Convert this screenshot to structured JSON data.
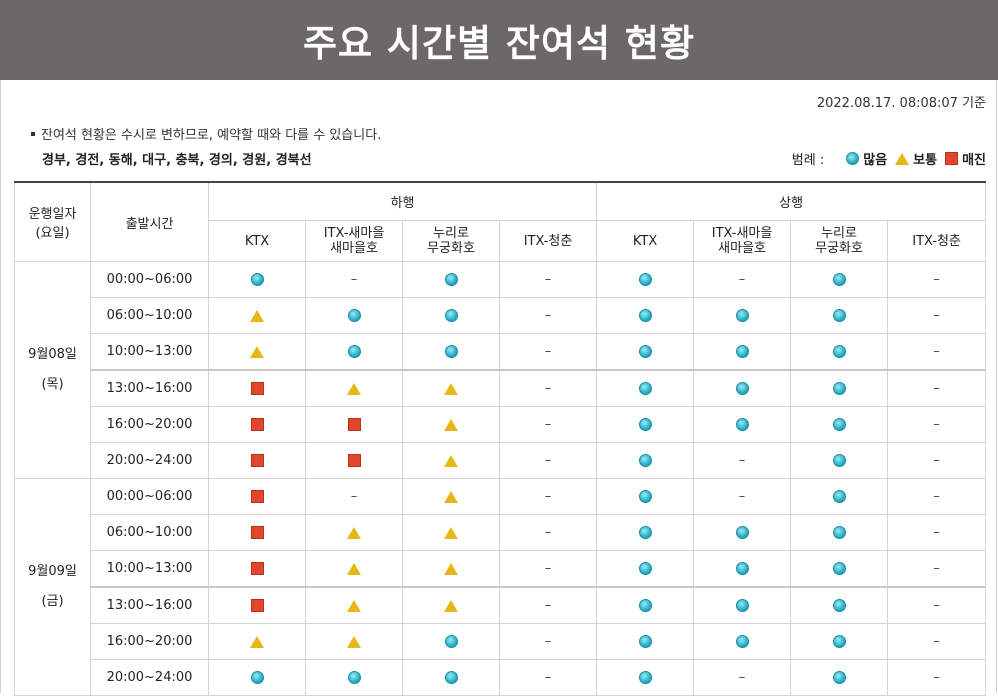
{
  "header": {
    "title": "주요 시간별 잔여석 현황"
  },
  "timestamp": "2022.08.17. 08:08:07 기준",
  "notice": "잔여석 현황은 수시로 변하므로, 예약할 때와 다를 수 있습니다.",
  "routes": "경부, 경전, 동해, 대구, 충북, 경의, 경원, 경북선",
  "legend": {
    "label": "범례 :",
    "items": [
      {
        "status": "many",
        "label": "많음",
        "icon": "circle-icon",
        "color": "#2eb6cc"
      },
      {
        "status": "normal",
        "label": "보통",
        "icon": "triangle-icon",
        "color": "#e7b718"
      },
      {
        "status": "soldout",
        "label": "매진",
        "icon": "square-icon",
        "color": "#e0462a"
      }
    ]
  },
  "table": {
    "col_date": "운행일자\n(요일)",
    "col_time": "출발시간",
    "down_label": "하행",
    "up_label": "상행",
    "trains": [
      "KTX",
      "ITX-새마을\n새마을호",
      "누리로\n무궁화호",
      "ITX-청춘"
    ],
    "days": [
      {
        "date": "9월08일",
        "weekday": "(목)",
        "rows": [
          {
            "time": "00:00~06:00",
            "down": [
              "many",
              "none",
              "many",
              "none"
            ],
            "up": [
              "many",
              "none",
              "many",
              "none"
            ]
          },
          {
            "time": "06:00~10:00",
            "down": [
              "normal",
              "many",
              "many",
              "none"
            ],
            "up": [
              "many",
              "many",
              "many",
              "none"
            ]
          },
          {
            "time": "10:00~13:00",
            "down": [
              "normal",
              "many",
              "many",
              "none"
            ],
            "up": [
              "many",
              "many",
              "many",
              "none"
            ]
          },
          {
            "time": "13:00~16:00",
            "down": [
              "soldout",
              "normal",
              "normal",
              "none"
            ],
            "up": [
              "many",
              "many",
              "many",
              "none"
            ]
          },
          {
            "time": "16:00~20:00",
            "down": [
              "soldout",
              "soldout",
              "normal",
              "none"
            ],
            "up": [
              "many",
              "many",
              "many",
              "none"
            ]
          },
          {
            "time": "20:00~24:00",
            "down": [
              "soldout",
              "soldout",
              "normal",
              "none"
            ],
            "up": [
              "many",
              "none",
              "many",
              "none"
            ]
          }
        ]
      },
      {
        "date": "9월09일",
        "weekday": "(금)",
        "rows": [
          {
            "time": "00:00~06:00",
            "down": [
              "soldout",
              "none",
              "normal",
              "none"
            ],
            "up": [
              "many",
              "none",
              "many",
              "none"
            ]
          },
          {
            "time": "06:00~10:00",
            "down": [
              "soldout",
              "normal",
              "normal",
              "none"
            ],
            "up": [
              "many",
              "many",
              "many",
              "none"
            ]
          },
          {
            "time": "10:00~13:00",
            "down": [
              "soldout",
              "normal",
              "normal",
              "none"
            ],
            "up": [
              "many",
              "many",
              "many",
              "none"
            ]
          },
          {
            "time": "13:00~16:00",
            "down": [
              "soldout",
              "normal",
              "normal",
              "none"
            ],
            "up": [
              "many",
              "many",
              "many",
              "none"
            ]
          },
          {
            "time": "16:00~20:00",
            "down": [
              "normal",
              "normal",
              "many",
              "none"
            ],
            "up": [
              "many",
              "many",
              "many",
              "none"
            ]
          },
          {
            "time": "20:00~24:00",
            "down": [
              "many",
              "many",
              "many",
              "none"
            ],
            "up": [
              "many",
              "none",
              "many",
              "none"
            ]
          }
        ]
      }
    ]
  }
}
